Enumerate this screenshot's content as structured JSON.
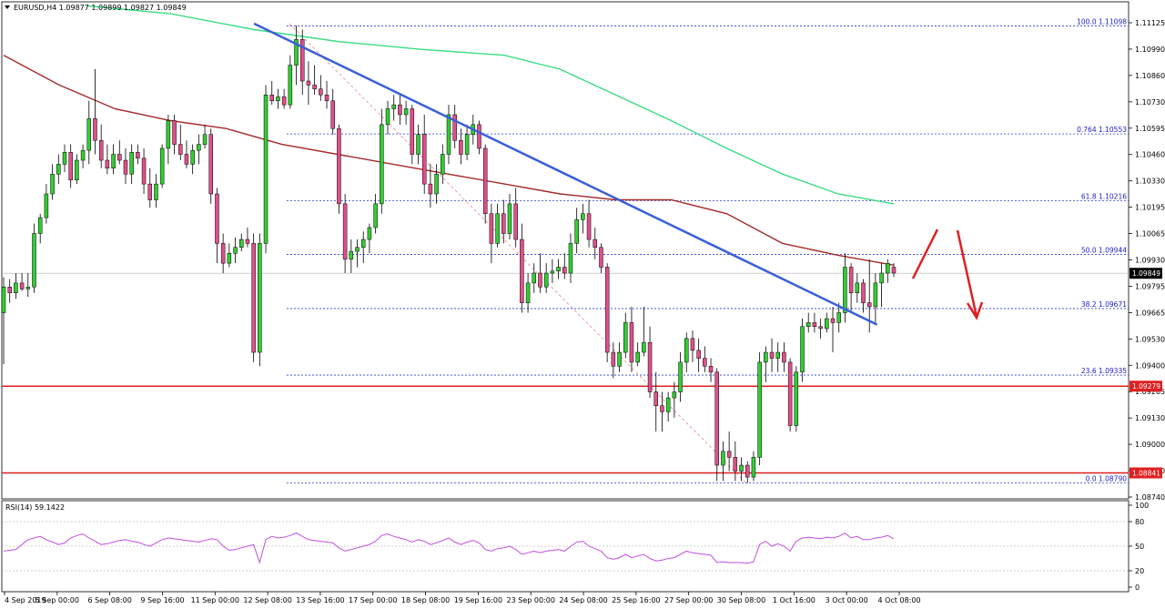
{
  "chart_data": {
    "type": "candlestick",
    "title": "EURUSD,H4  1.09877 1.09899 1.09827 1.09849",
    "symbol": "EURUSD",
    "timeframe": "H4",
    "ohlc_header": {
      "open": 1.09877,
      "high": 1.09899,
      "low": 1.09827,
      "close": 1.09849
    },
    "x_labels": [
      "4 Sep 2019",
      "5 Sep 00:00",
      "6 Sep 08:00",
      "9 Sep 16:00",
      "11 Sep 00:00",
      "12 Sep 08:00",
      "13 Sep 16:00",
      "17 Sep 00:00",
      "18 Sep 08:00",
      "19 Sep 16:00",
      "23 Sep 00:00",
      "24 Sep 08:00",
      "25 Sep 16:00",
      "27 Sep 00:00",
      "30 Sep 08:00",
      "1 Oct 16:00",
      "3 Oct 00:00",
      "4 Oct 08:00"
    ],
    "y_ticks": [
      "1.11125",
      "1.10990",
      "1.10860",
      "1.10730",
      "1.10595",
      "1.10460",
      "1.10330",
      "1.10195",
      "1.10065",
      "1.09930",
      "1.09795",
      "1.09665",
      "1.09530",
      "1.09400",
      "1.09265",
      "1.09130",
      "1.09000",
      "1.08870",
      "1.08740"
    ],
    "ylim": [
      1.0871,
      1.1122
    ],
    "price_label": "1.09849",
    "current_price": 1.09849,
    "candles": [
      [
        1.0965,
        1.0983,
        1.0939,
        1.0978
      ],
      [
        1.0978,
        1.0982,
        1.097,
        1.0975
      ],
      [
        1.0975,
        1.0985,
        1.0972,
        1.098
      ],
      [
        1.098,
        1.0985,
        1.0976,
        1.0977
      ],
      [
        1.0977,
        1.0985,
        1.0973,
        1.0978
      ],
      [
        1.0978,
        1.101,
        1.0975,
        1.1005
      ],
      [
        1.1005,
        1.1015,
        1.1,
        1.1013
      ],
      [
        1.1013,
        1.103,
        1.101,
        1.1025
      ],
      [
        1.1025,
        1.104,
        1.1022,
        1.1035
      ],
      [
        1.1035,
        1.1045,
        1.103,
        1.104
      ],
      [
        1.104,
        1.105,
        1.1036,
        1.1046
      ],
      [
        1.1046,
        1.105,
        1.1028,
        1.1032
      ],
      [
        1.1032,
        1.1045,
        1.103,
        1.1042
      ],
      [
        1.1042,
        1.105,
        1.1038,
        1.1047
      ],
      [
        1.1047,
        1.1072,
        1.104,
        1.1063
      ],
      [
        1.1063,
        1.1088,
        1.1045,
        1.1052
      ],
      [
        1.1052,
        1.106,
        1.1038,
        1.1042
      ],
      [
        1.1042,
        1.105,
        1.1035,
        1.1038
      ],
      [
        1.1038,
        1.105,
        1.1035,
        1.1045
      ],
      [
        1.1045,
        1.1052,
        1.104,
        1.1042
      ],
      [
        1.1042,
        1.1048,
        1.103,
        1.1035
      ],
      [
        1.1035,
        1.105,
        1.103,
        1.1046
      ],
      [
        1.1046,
        1.105,
        1.104,
        1.1043
      ],
      [
        1.1043,
        1.1048,
        1.1025,
        1.103
      ],
      [
        1.103,
        1.1038,
        1.1018,
        1.1022
      ],
      [
        1.1022,
        1.1035,
        1.1018,
        1.103
      ],
      [
        1.103,
        1.105,
        1.1028,
        1.1048
      ],
      [
        1.1048,
        1.1065,
        1.104,
        1.1062
      ],
      [
        1.1062,
        1.1065,
        1.1045,
        1.105
      ],
      [
        1.105,
        1.106,
        1.1042,
        1.1045
      ],
      [
        1.1045,
        1.1052,
        1.1038,
        1.104
      ],
      [
        1.104,
        1.105,
        1.1035,
        1.1047
      ],
      [
        1.1047,
        1.1055,
        1.104,
        1.105
      ],
      [
        1.105,
        1.106,
        1.1048,
        1.1055
      ],
      [
        1.1055,
        1.1058,
        1.102,
        1.1025
      ],
      [
        1.1025,
        1.1028,
        1.099,
        1.1
      ],
      [
        1.1,
        1.1005,
        1.0985,
        1.099
      ],
      [
        1.099,
        1.1,
        1.0988,
        1.0995
      ],
      [
        1.0995,
        1.1003,
        1.099,
        1.0998
      ],
      [
        1.0998,
        1.1005,
        1.0996,
        1.1002
      ],
      [
        1.1002,
        1.1008,
        1.0998,
        1.1
      ],
      [
        1.1,
        1.1005,
        1.094,
        1.0945
      ],
      [
        1.0945,
        1.1005,
        1.0938,
        1.1
      ],
      [
        1.1,
        1.108,
        1.0995,
        1.1075
      ],
      [
        1.1075,
        1.1082,
        1.107,
        1.1072
      ],
      [
        1.1072,
        1.1078,
        1.1068,
        1.1074
      ],
      [
        1.1074,
        1.1078,
        1.1068,
        1.107
      ],
      [
        1.107,
        1.1095,
        1.1068,
        1.109
      ],
      [
        1.109,
        1.111,
        1.108,
        1.1103
      ],
      [
        1.1103,
        1.1108,
        1.1075,
        1.1082
      ],
      [
        1.1082,
        1.1092,
        1.107,
        1.108
      ],
      [
        1.108,
        1.109,
        1.1075,
        1.1078
      ],
      [
        1.1078,
        1.1085,
        1.1072,
        1.1075
      ],
      [
        1.1075,
        1.1082,
        1.1068,
        1.1072
      ],
      [
        1.1072,
        1.1078,
        1.1055,
        1.1058
      ],
      [
        1.1058,
        1.106,
        1.1015,
        1.102
      ],
      [
        1.102,
        1.1025,
        1.0985,
        1.0992
      ],
      [
        1.0992,
        1.1002,
        1.0985,
        1.0996
      ],
      [
        1.0996,
        1.1002,
        1.0988,
        1.0998
      ],
      [
        1.0998,
        1.1006,
        1.099,
        1.1002
      ],
      [
        1.1002,
        1.101,
        1.0995,
        1.1008
      ],
      [
        1.1008,
        1.1025,
        1.1005,
        1.102
      ],
      [
        1.102,
        1.1068,
        1.1015,
        1.106
      ],
      [
        1.106,
        1.1072,
        1.1055,
        1.1068
      ],
      [
        1.1068,
        1.1075,
        1.1062,
        1.107
      ],
      [
        1.107,
        1.1075,
        1.106,
        1.1065
      ],
      [
        1.1065,
        1.1072,
        1.106,
        1.1068
      ],
      [
        1.1068,
        1.107,
        1.104,
        1.1045
      ],
      [
        1.1045,
        1.106,
        1.104,
        1.1055
      ],
      [
        1.1055,
        1.1065,
        1.1025,
        1.103
      ],
      [
        1.103,
        1.104,
        1.1018,
        1.1025
      ],
      [
        1.1025,
        1.104,
        1.102,
        1.1035
      ],
      [
        1.1035,
        1.105,
        1.103,
        1.1045
      ],
      [
        1.1045,
        1.107,
        1.104,
        1.1065
      ],
      [
        1.1065,
        1.107,
        1.1048,
        1.1052
      ],
      [
        1.1052,
        1.1058,
        1.104,
        1.1045
      ],
      [
        1.1045,
        1.106,
        1.1042,
        1.1055
      ],
      [
        1.1055,
        1.1065,
        1.105,
        1.106
      ],
      [
        1.106,
        1.1062,
        1.1045,
        1.1048
      ],
      [
        1.1048,
        1.105,
        1.101,
        1.1015
      ],
      [
        1.1015,
        1.102,
        1.099,
        1.1
      ],
      [
        1.1,
        1.102,
        1.0998,
        1.1015
      ],
      [
        1.1015,
        1.1022,
        1.1,
        1.1005
      ],
      [
        1.1005,
        1.1025,
        1.1002,
        1.102
      ],
      [
        1.102,
        1.1028,
        1.0998,
        1.1002
      ],
      [
        1.1002,
        1.101,
        1.0965,
        1.097
      ],
      [
        1.097,
        1.0985,
        1.0965,
        1.098
      ],
      [
        1.098,
        1.099,
        1.0975,
        1.0985
      ],
      [
        1.0985,
        1.0995,
        1.0975,
        1.0978
      ],
      [
        1.0978,
        1.099,
        1.0975,
        1.0985
      ],
      [
        1.0985,
        1.0992,
        1.098,
        1.0986
      ],
      [
        1.0986,
        1.0992,
        1.0982,
        1.0988
      ],
      [
        1.0988,
        1.0995,
        1.0982,
        1.0985
      ],
      [
        1.0985,
        1.1005,
        1.098,
        1.1
      ],
      [
        1.1,
        1.1018,
        1.0995,
        1.1012
      ],
      [
        1.1012,
        1.102,
        1.1005,
        1.1015
      ],
      [
        1.1015,
        1.1022,
        1.0998,
        1.1002
      ],
      [
        1.1002,
        1.1008,
        1.0992,
        1.0998
      ],
      [
        1.0998,
        1.1,
        1.0985,
        1.0988
      ],
      [
        1.0988,
        1.099,
        1.094,
        1.0945
      ],
      [
        1.0945,
        1.095,
        1.0932,
        1.0938
      ],
      [
        1.0938,
        1.095,
        1.0935,
        1.0945
      ],
      [
        1.0945,
        1.0965,
        1.0942,
        1.096
      ],
      [
        1.096,
        1.0968,
        1.0935,
        1.094
      ],
      [
        1.094,
        1.095,
        1.0938,
        1.0945
      ],
      [
        1.0945,
        1.0968,
        1.0943,
        1.095
      ],
      [
        1.095,
        1.0958,
        1.0922,
        1.0925
      ],
      [
        1.0925,
        1.0935,
        1.0905,
        1.0918
      ],
      [
        1.0918,
        1.0925,
        1.0905,
        1.0915
      ],
      [
        1.0915,
        1.0925,
        1.091,
        1.0922
      ],
      [
        1.0922,
        1.093,
        1.0912,
        1.0925
      ],
      [
        1.0925,
        1.0945,
        1.092,
        1.094
      ],
      [
        1.094,
        1.0955,
        1.0935,
        1.0952
      ],
      [
        1.0952,
        1.0956,
        1.094,
        1.0946
      ],
      [
        1.0946,
        1.0952,
        1.0935,
        1.0942
      ],
      [
        1.0942,
        1.0948,
        1.0935,
        1.0938
      ],
      [
        1.0938,
        1.0942,
        1.093,
        1.0935
      ],
      [
        1.0935,
        1.0937,
        1.088,
        1.0888
      ],
      [
        1.0888,
        1.09,
        1.088,
        1.0895
      ],
      [
        1.0895,
        1.0905,
        1.0885,
        1.0892
      ],
      [
        1.0892,
        1.09,
        1.088,
        1.0885
      ],
      [
        1.0885,
        1.0892,
        1.088,
        1.0888
      ],
      [
        1.0888,
        1.089,
        1.0879,
        1.0882
      ],
      [
        1.0882,
        1.0895,
        1.088,
        1.0892
      ],
      [
        1.0892,
        1.0945,
        1.0888,
        1.094
      ],
      [
        1.094,
        1.0948,
        1.093,
        1.0945
      ],
      [
        1.0945,
        1.0952,
        1.0935,
        1.0942
      ],
      [
        1.0942,
        1.095,
        1.0935,
        1.0945
      ],
      [
        1.0945,
        1.095,
        1.0935,
        1.094
      ],
      [
        1.094,
        1.0942,
        1.0905,
        1.0908
      ],
      [
        1.0908,
        1.0938,
        1.0905,
        1.0935
      ],
      [
        1.0935,
        1.0962,
        1.093,
        1.0958
      ],
      [
        1.0958,
        1.0965,
        1.0955,
        1.096
      ],
      [
        1.096,
        1.0965,
        1.0955,
        1.0958
      ],
      [
        1.0958,
        1.0962,
        1.0952,
        1.0957
      ],
      [
        1.0957,
        1.0965,
        1.0955,
        1.0962
      ],
      [
        1.0962,
        1.0968,
        1.0945,
        1.096
      ],
      [
        1.096,
        1.097,
        1.0955,
        1.0965
      ],
      [
        1.0965,
        1.0995,
        1.096,
        1.0988
      ],
      [
        1.0988,
        1.099,
        1.0965,
        1.0975
      ],
      [
        1.0975,
        1.0985,
        1.097,
        1.098
      ],
      [
        1.098,
        1.0982,
        1.0965,
        1.097
      ],
      [
        1.097,
        1.0992,
        1.0955,
        1.0968
      ],
      [
        1.0968,
        1.0985,
        1.096,
        1.098
      ],
      [
        1.098,
        1.099,
        1.0968,
        1.0985
      ],
      [
        1.0985,
        1.0992,
        1.098,
        1.099
      ],
      [
        1.0988,
        1.099,
        1.0983,
        1.0985
      ]
    ],
    "moving_averages": [
      {
        "name": "MA red",
        "color": "#a52a2a",
        "points": [
          [
            0,
            1.1095
          ],
          [
            10,
            1.108
          ],
          [
            20,
            1.1068
          ],
          [
            30,
            1.1062
          ],
          [
            40,
            1.1058
          ],
          [
            50,
            1.105
          ],
          [
            60,
            1.1045
          ],
          [
            70,
            1.104
          ],
          [
            80,
            1.1035
          ],
          [
            90,
            1.103
          ],
          [
            100,
            1.1025
          ],
          [
            110,
            1.1022
          ],
          [
            120,
            1.1022
          ],
          [
            130,
            1.1015
          ],
          [
            140,
            1.1
          ],
          [
            150,
            1.0994
          ],
          [
            160,
            1.0989
          ]
        ]
      },
      {
        "name": "MA green",
        "color": "#3ddc84",
        "points": [
          [
            15,
            1.112
          ],
          [
            30,
            1.1116
          ],
          [
            45,
            1.1108
          ],
          [
            60,
            1.1102
          ],
          [
            75,
            1.1098
          ],
          [
            90,
            1.1095
          ],
          [
            100,
            1.1088
          ],
          [
            110,
            1.1075
          ],
          [
            120,
            1.1062
          ],
          [
            130,
            1.1048
          ],
          [
            140,
            1.1035
          ],
          [
            150,
            1.1025
          ],
          [
            160,
            1.102
          ]
        ]
      }
    ],
    "fibonacci": [
      {
        "label": "100.0  1.11098",
        "price": 1.11098
      },
      {
        "label": "0.764  1.10553",
        "price": 1.10553
      },
      {
        "label": "61.8  1.10216",
        "price": 1.10216
      },
      {
        "label": "50.0  1.09944",
        "price": 1.09944
      },
      {
        "label": "38.2  1.09671",
        "price": 1.09671
      },
      {
        "label": "23.6  1.09335",
        "price": 1.09335
      },
      {
        "label": "0.0  1.08790",
        "price": 1.0879
      }
    ],
    "horizontal_levels": [
      {
        "label": "1.09279",
        "price": 1.09279,
        "color": "#e02020"
      },
      {
        "label": "1.08841",
        "price": 1.08841,
        "color": "#e02020"
      }
    ],
    "trend_line": {
      "color": "#3a5fd6",
      "from": [
        45,
        1.1111
      ],
      "to": [
        157,
        1.0959
      ]
    },
    "rsi": {
      "label": "RSI(14) 59.1422",
      "period": 14,
      "value": 59.1422,
      "y_ticks": [
        "100",
        "80",
        "50",
        "20",
        "0"
      ],
      "levels": [
        80,
        50,
        20
      ],
      "color": "#c050e0",
      "values": [
        44,
        45,
        46,
        52,
        58,
        60,
        62,
        58,
        55,
        52,
        54,
        60,
        63,
        65,
        60,
        56,
        52,
        53,
        55,
        57,
        58,
        56,
        55,
        52,
        50,
        54,
        58,
        60,
        59,
        58,
        57,
        56,
        55,
        57,
        59,
        58,
        50,
        45,
        46,
        48,
        50,
        52,
        30,
        58,
        62,
        60,
        61,
        63,
        66,
        62,
        58,
        57,
        56,
        55,
        54,
        48,
        44,
        46,
        48,
        50,
        52,
        56,
        63,
        65,
        62,
        60,
        58,
        55,
        58,
        56,
        52,
        54,
        57,
        60,
        55,
        52,
        55,
        57,
        54,
        46,
        44,
        47,
        48,
        50,
        46,
        40,
        42,
        44,
        42,
        44,
        45,
        46,
        44,
        50,
        55,
        56,
        50,
        47,
        44,
        36,
        34,
        36,
        40,
        36,
        38,
        40,
        35,
        32,
        33,
        35,
        36,
        40,
        44,
        42,
        41,
        40,
        39,
        30,
        31,
        30,
        30,
        30,
        29,
        31,
        52,
        56,
        50,
        53,
        50,
        44,
        56,
        60,
        61,
        60,
        59,
        61,
        60,
        62,
        66,
        60,
        62,
        58,
        58,
        60,
        61,
        63,
        59.1
      ]
    }
  },
  "arrows": {
    "up_color": "#e02020",
    "down_color": "#e02020"
  }
}
